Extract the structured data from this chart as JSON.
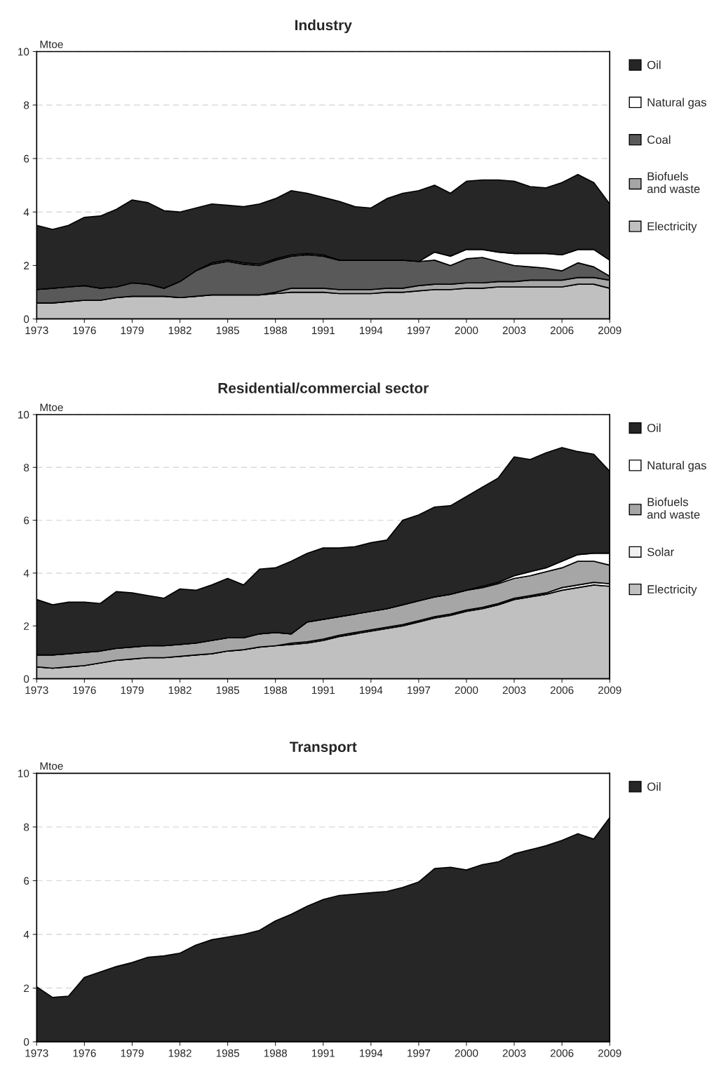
{
  "chart_data": [
    {
      "type": "area",
      "title": "Industry",
      "ylabel": "Mtoe",
      "stacked": true,
      "grid": "y",
      "legend": "right",
      "x": [
        1973,
        1974,
        1975,
        1976,
        1977,
        1978,
        1979,
        1980,
        1981,
        1982,
        1983,
        1984,
        1985,
        1986,
        1987,
        1988,
        1989,
        1990,
        1991,
        1992,
        1993,
        1994,
        1995,
        1996,
        1997,
        1998,
        1999,
        2000,
        2001,
        2002,
        2003,
        2004,
        2005,
        2006,
        2007,
        2008,
        2009
      ],
      "xlim": [
        1973,
        2009
      ],
      "xticks": [
        1973,
        1976,
        1979,
        1982,
        1985,
        1988,
        1991,
        1994,
        1997,
        2000,
        2003,
        2006,
        2009
      ],
      "ylim": [
        0,
        10
      ],
      "yticks": [
        0,
        2,
        4,
        6,
        8,
        10
      ],
      "series": [
        {
          "name": "Electricity",
          "color": "#c0c0c0",
          "values": [
            0.6,
            0.6,
            0.65,
            0.7,
            0.7,
            0.8,
            0.85,
            0.85,
            0.85,
            0.8,
            0.85,
            0.9,
            0.9,
            0.9,
            0.9,
            0.95,
            1.0,
            1.0,
            1.0,
            0.95,
            0.95,
            0.95,
            1.0,
            1.0,
            1.05,
            1.1,
            1.1,
            1.15,
            1.15,
            1.2,
            1.2,
            1.2,
            1.2,
            1.2,
            1.3,
            1.3,
            1.15
          ]
        },
        {
          "name": "Biofuels\nand waste",
          "color": "#a6a6a6",
          "values": [
            0,
            0,
            0,
            0,
            0,
            0,
            0,
            0,
            0,
            0,
            0,
            0,
            0,
            0,
            0,
            0.05,
            0.15,
            0.15,
            0.15,
            0.15,
            0.15,
            0.15,
            0.15,
            0.15,
            0.2,
            0.2,
            0.2,
            0.2,
            0.2,
            0.2,
            0.2,
            0.25,
            0.25,
            0.25,
            0.25,
            0.25,
            0.3
          ]
        },
        {
          "name": "Coal",
          "color": "#595959",
          "values": [
            0.5,
            0.55,
            0.55,
            0.55,
            0.45,
            0.4,
            0.5,
            0.45,
            0.3,
            0.6,
            0.95,
            1.15,
            1.25,
            1.15,
            1.1,
            1.2,
            1.2,
            1.25,
            1.2,
            1.1,
            1.1,
            1.1,
            1.05,
            1.05,
            0.9,
            0.9,
            0.7,
            0.9,
            0.95,
            0.75,
            0.6,
            0.5,
            0.45,
            0.35,
            0.55,
            0.4,
            0.15
          ]
        },
        {
          "name": "Natural gas",
          "color": "#ffffff",
          "values": [
            0,
            0,
            0,
            0,
            0,
            0,
            0,
            0,
            0,
            0,
            0,
            0.05,
            0.05,
            0.05,
            0.05,
            0.05,
            0.05,
            0.05,
            0.05,
            0,
            0,
            0,
            0,
            0,
            0,
            0.3,
            0.35,
            0.35,
            0.3,
            0.35,
            0.45,
            0.5,
            0.55,
            0.6,
            0.5,
            0.65,
            0.6
          ]
        },
        {
          "name": "Oil",
          "color": "#262626",
          "values": [
            2.4,
            2.2,
            2.3,
            2.55,
            2.7,
            2.9,
            3.1,
            3.05,
            2.9,
            2.6,
            2.35,
            2.2,
            2.05,
            2.1,
            2.25,
            2.25,
            2.4,
            2.25,
            2.15,
            2.2,
            2.0,
            1.95,
            2.3,
            2.5,
            2.65,
            2.5,
            2.35,
            2.55,
            2.6,
            2.7,
            2.7,
            2.5,
            2.45,
            2.7,
            2.8,
            2.5,
            2.1
          ]
        }
      ]
    },
    {
      "type": "area",
      "title": "Residential/commercial sector",
      "ylabel": "Mtoe",
      "stacked": true,
      "grid": "y",
      "legend": "right",
      "x": [
        1973,
        1974,
        1975,
        1976,
        1977,
        1978,
        1979,
        1980,
        1981,
        1982,
        1983,
        1984,
        1985,
        1986,
        1987,
        1988,
        1989,
        1990,
        1991,
        1992,
        1993,
        1994,
        1995,
        1996,
        1997,
        1998,
        1999,
        2000,
        2001,
        2002,
        2003,
        2004,
        2005,
        2006,
        2007,
        2008,
        2009
      ],
      "xlim": [
        1973,
        2009
      ],
      "xticks": [
        1973,
        1976,
        1979,
        1982,
        1985,
        1988,
        1991,
        1994,
        1997,
        2000,
        2003,
        2006,
        2009
      ],
      "ylim": [
        0,
        10
      ],
      "yticks": [
        0,
        2,
        4,
        6,
        8,
        10
      ],
      "series": [
        {
          "name": "Electricity",
          "color": "#c0c0c0",
          "values": [
            0.45,
            0.4,
            0.45,
            0.5,
            0.6,
            0.7,
            0.75,
            0.8,
            0.8,
            0.85,
            0.9,
            0.95,
            1.05,
            1.1,
            1.2,
            1.25,
            1.3,
            1.35,
            1.45,
            1.6,
            1.7,
            1.8,
            1.9,
            2.0,
            2.15,
            2.3,
            2.4,
            2.55,
            2.65,
            2.8,
            3.0,
            3.1,
            3.2,
            3.35,
            3.45,
            3.55,
            3.5
          ]
        },
        {
          "name": "Solar",
          "color": "#f2f2f2",
          "values": [
            0,
            0,
            0,
            0,
            0,
            0,
            0,
            0,
            0,
            0,
            0,
            0,
            0,
            0,
            0,
            0,
            0.05,
            0.05,
            0.05,
            0.05,
            0.05,
            0.05,
            0.05,
            0.05,
            0.05,
            0.05,
            0.05,
            0.05,
            0.05,
            0.05,
            0.05,
            0.05,
            0.05,
            0.1,
            0.1,
            0.1,
            0.1
          ]
        },
        {
          "name": "Biofuels\nand waste",
          "color": "#a6a6a6",
          "values": [
            0.45,
            0.5,
            0.5,
            0.5,
            0.45,
            0.45,
            0.45,
            0.45,
            0.45,
            0.45,
            0.45,
            0.5,
            0.5,
            0.45,
            0.5,
            0.5,
            0.35,
            0.75,
            0.75,
            0.7,
            0.7,
            0.7,
            0.7,
            0.75,
            0.75,
            0.75,
            0.75,
            0.75,
            0.75,
            0.75,
            0.75,
            0.75,
            0.8,
            0.75,
            0.9,
            0.8,
            0.7
          ]
        },
        {
          "name": "Natural gas",
          "color": "#ffffff",
          "values": [
            0,
            0,
            0,
            0,
            0,
            0,
            0,
            0,
            0,
            0,
            0,
            0,
            0,
            0,
            0,
            0,
            0,
            0,
            0,
            0,
            0,
            0,
            0,
            0,
            0,
            0,
            0,
            0,
            0.05,
            0.05,
            0.1,
            0.15,
            0.15,
            0.25,
            0.25,
            0.3,
            0.45
          ]
        },
        {
          "name": "Oil",
          "color": "#262626",
          "values": [
            2.1,
            1.9,
            1.95,
            1.9,
            1.8,
            2.15,
            2.05,
            1.9,
            1.8,
            2.1,
            2.0,
            2.1,
            2.25,
            2.0,
            2.45,
            2.45,
            2.75,
            2.6,
            2.7,
            2.6,
            2.55,
            2.6,
            2.6,
            3.2,
            3.25,
            3.4,
            3.35,
            3.55,
            3.75,
            3.95,
            4.5,
            4.25,
            4.35,
            4.3,
            3.9,
            3.75,
            3.1
          ]
        }
      ]
    },
    {
      "type": "area",
      "title": "Transport",
      "ylabel": "Mtoe",
      "stacked": true,
      "grid": "y",
      "legend": "right",
      "x": [
        1973,
        1974,
        1975,
        1976,
        1977,
        1978,
        1979,
        1980,
        1981,
        1982,
        1983,
        1984,
        1985,
        1986,
        1987,
        1988,
        1989,
        1990,
        1991,
        1992,
        1993,
        1994,
        1995,
        1996,
        1997,
        1998,
        1999,
        2000,
        2001,
        2002,
        2003,
        2004,
        2005,
        2006,
        2007,
        2008,
        2009
      ],
      "xlim": [
        1973,
        2009
      ],
      "xticks": [
        1973,
        1976,
        1979,
        1982,
        1985,
        1988,
        1991,
        1994,
        1997,
        2000,
        2003,
        2006,
        2009
      ],
      "ylim": [
        0,
        10
      ],
      "yticks": [
        0,
        2,
        4,
        6,
        8,
        10
      ],
      "series": [
        {
          "name": "Oil",
          "color": "#262626",
          "values": [
            2.05,
            1.65,
            1.7,
            2.4,
            2.6,
            2.8,
            2.95,
            3.15,
            3.2,
            3.3,
            3.6,
            3.8,
            3.9,
            4.0,
            4.15,
            4.5,
            4.75,
            5.05,
            5.3,
            5.45,
            5.5,
            5.55,
            5.6,
            5.75,
            5.95,
            6.45,
            6.5,
            6.4,
            6.6,
            6.7,
            7.0,
            7.15,
            7.3,
            7.5,
            7.75,
            7.55,
            8.35
          ]
        }
      ]
    }
  ]
}
